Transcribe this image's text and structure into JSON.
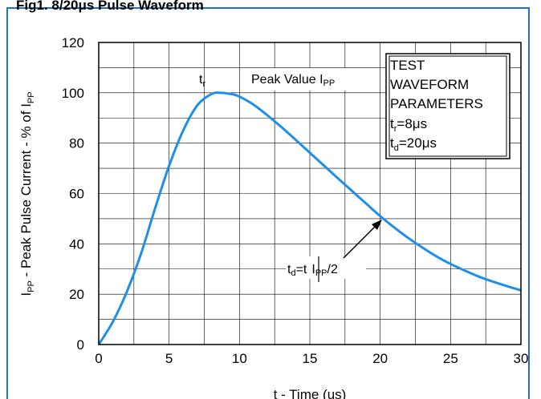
{
  "figure": {
    "title": "Fig1.   8/20μs Pulse Waveform"
  },
  "chart_data": {
    "type": "line",
    "xlabel": "t - Time (us)",
    "ylabel_parts": {
      "main": "I",
      "sub": "PP",
      "mid": " - Peak Pulse Current - % of I",
      "sub2": "PP"
    },
    "xlim": [
      0,
      30
    ],
    "ylim": [
      0,
      120
    ],
    "x_ticks": [
      0,
      5,
      10,
      15,
      20,
      25,
      30
    ],
    "y_ticks": [
      0,
      20,
      40,
      60,
      80,
      100,
      120
    ],
    "grid": true,
    "series": [
      {
        "color": "#1e8fe8",
        "x": [
          0,
          1,
          2,
          3,
          4,
          5,
          6,
          7,
          8,
          8.7,
          9.5,
          10,
          11,
          12,
          13,
          14,
          15,
          16,
          17,
          18,
          19,
          20,
          21,
          22,
          23,
          24,
          25,
          26,
          27,
          28,
          29,
          30
        ],
        "y": [
          0,
          9,
          21,
          36,
          54,
          71,
          85,
          95,
          99.5,
          100,
          99.4,
          98.5,
          95.3,
          91,
          86.3,
          81.3,
          76.2,
          71.1,
          66,
          61,
          56,
          51,
          46.5,
          42.3,
          38.5,
          35,
          32,
          29.4,
          27,
          25,
          23.2,
          21.5
        ]
      }
    ],
    "annotations": {
      "tr": {
        "main": "t",
        "sub": "r"
      },
      "peak": {
        "main": "Peak Value I",
        "sub": "PP"
      },
      "td": {
        "a": "t",
        "a_sub": "d",
        "b": "=t",
        "c": "I",
        "c_sub": "PP",
        "d": "/2"
      },
      "td_point": {
        "x": 20,
        "y": 50
      }
    },
    "legend_box": {
      "lines": [
        "TEST",
        "WAVEFORM",
        "PARAMETERS"
      ],
      "tr": {
        "main": "t",
        "sub": "r",
        "value": "=8μs"
      },
      "td": {
        "main": "t",
        "sub": "d",
        "value": "=20μs"
      }
    }
  }
}
